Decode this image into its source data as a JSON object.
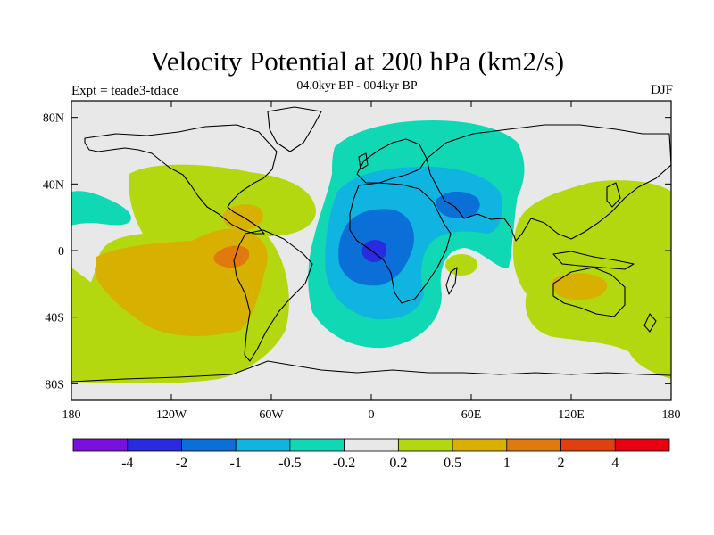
{
  "title": "Velocity Potential at 200 hPa (km2/s)",
  "subtitle": "04.0kyr BP - 004kyr BP",
  "experiment": "Expt = teade3-tdace",
  "season": "DJF",
  "map": {
    "lon_range": [
      -180,
      180
    ],
    "lat_range": [
      -90,
      90
    ],
    "projection": "cylindrical-equidistant",
    "lon_ticks": [
      {
        "value": -180,
        "label": "180"
      },
      {
        "value": -120,
        "label": "120W"
      },
      {
        "value": -60,
        "label": "60W"
      },
      {
        "value": 0,
        "label": "0"
      },
      {
        "value": 60,
        "label": "60E"
      },
      {
        "value": 120,
        "label": "120E"
      },
      {
        "value": 180,
        "label": "180"
      }
    ],
    "lat_ticks": [
      {
        "value": 80,
        "label": "80N"
      },
      {
        "value": 40,
        "label": "40N"
      },
      {
        "value": 0,
        "label": "0"
      },
      {
        "value": -40,
        "label": "40S"
      },
      {
        "value": -80,
        "label": "80S"
      }
    ],
    "background_color": "#e8e8e8"
  },
  "colorbar": {
    "colors": [
      "#7a10e0",
      "#2a2ae0",
      "#0a70d8",
      "#10b4e0",
      "#10d8b4",
      "#e8e8e8",
      "#b4d810",
      "#d8b000",
      "#e07a10",
      "#e04010",
      "#e80010"
    ],
    "labels": [
      "-4",
      "-2",
      "-1",
      "-0.5",
      "-0.2",
      "0.2",
      "0.5",
      "1",
      "2",
      "4"
    ]
  },
  "colors": {
    "neg_0_2": "#10d8b4",
    "neg_0_5": "#10b4e0",
    "neg_1": "#0a70d8",
    "neg_2": "#2a2ae0",
    "pos_0_2": "#b4d810",
    "pos_0_5": "#d8b000",
    "pos_1": "#e07a10"
  }
}
